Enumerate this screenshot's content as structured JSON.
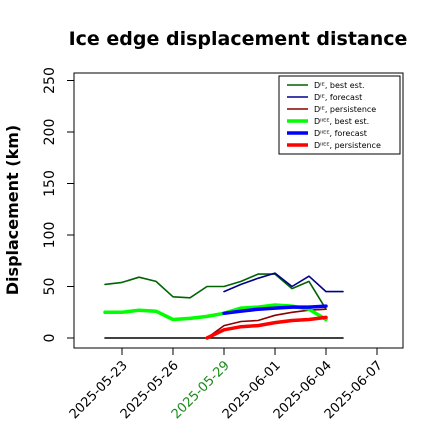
{
  "chart_data": {
    "type": "line",
    "title": "Ice edge displacement distance",
    "xlabel": "",
    "ylabel": "Displacement (km)",
    "x_range": [
      "2025-05-21",
      "2025-06-10"
    ],
    "ylim": [
      0,
      260
    ],
    "y_ticks": [
      "0",
      "50",
      "100",
      "150",
      "200",
      "250"
    ],
    "x_ticks": [
      {
        "label": "2025-05-23",
        "date": "2025-05-23",
        "color": "#000000"
      },
      {
        "label": "2025-05-26",
        "date": "2025-05-26",
        "color": "#000000"
      },
      {
        "label": "2025-05-29",
        "date": "2025-05-29",
        "color": "#1a8a1a"
      },
      {
        "label": "2025-06-01",
        "date": "2025-06-01",
        "color": "#000000"
      },
      {
        "label": "2025-06-04",
        "date": "2025-06-04",
        "color": "#000000"
      },
      {
        "label": "2025-06-07",
        "date": "2025-06-07",
        "color": "#000000"
      }
    ],
    "grid": false,
    "legend_position": "top-right",
    "legend": [
      {
        "label": "Dᴵᴱ, best est.",
        "color": "#006400",
        "width": "thin"
      },
      {
        "label": "Dᴵᴱ, forecast",
        "color": "#00008b",
        "width": "thin"
      },
      {
        "label": "Dᴵᴱ, persistence",
        "color": "#8b0000",
        "width": "thin"
      },
      {
        "label": "Dᴵᴵᴱᴱ, best est.",
        "color": "#00ff00",
        "width": "thick"
      },
      {
        "label": "Dᴵᴵᴱᴱ, forecast",
        "color": "#0000ff",
        "width": "thick"
      },
      {
        "label": "Dᴵᴵᴱᴱ, persistence",
        "color": "#ff0000",
        "width": "thick"
      }
    ],
    "series": [
      {
        "label": "baseline",
        "color": "#000000",
        "width": "thin",
        "x": [
          "2025-05-22",
          "2025-06-05"
        ],
        "y": [
          0,
          0
        ]
      },
      {
        "label": "Dᴵᴱ, best est.",
        "color": "#006400",
        "width": "thin",
        "x": [
          "2025-05-22",
          "2025-05-23",
          "2025-05-24",
          "2025-05-25",
          "2025-05-26",
          "2025-05-27",
          "2025-05-28",
          "2025-05-29",
          "2025-05-30",
          "2025-05-31",
          "2025-06-01",
          "2025-06-02",
          "2025-06-03",
          "2025-06-04"
        ],
        "y": [
          52,
          54,
          59,
          55,
          40,
          39,
          50,
          50,
          55,
          62,
          62,
          48,
          55,
          28
        ]
      },
      {
        "label": "Dᴵᴱ, forecast",
        "color": "#00008b",
        "width": "thin",
        "x": [
          "2025-05-29",
          "2025-05-30",
          "2025-05-31",
          "2025-06-01",
          "2025-06-02",
          "2025-06-03",
          "2025-06-04",
          "2025-06-05"
        ],
        "y": [
          45,
          52,
          58,
          63,
          50,
          60,
          45,
          45
        ]
      },
      {
        "label": "Dᴵᴱ, persistence",
        "color": "#8b0000",
        "width": "thin",
        "x": [
          "2025-05-28",
          "2025-05-29",
          "2025-05-30",
          "2025-05-31",
          "2025-06-01",
          "2025-06-02",
          "2025-06-03",
          "2025-06-04"
        ],
        "y": [
          0,
          12,
          16,
          17,
          22,
          25,
          27,
          28
        ]
      },
      {
        "label": "Dᴵᴵᴱᴱ, best est.",
        "color": "#00ff00",
        "width": "thick",
        "x": [
          "2025-05-22",
          "2025-05-23",
          "2025-05-24",
          "2025-05-25",
          "2025-05-26",
          "2025-05-27",
          "2025-05-28",
          "2025-05-29",
          "2025-05-30",
          "2025-05-31",
          "2025-06-01",
          "2025-06-02",
          "2025-06-03",
          "2025-06-04"
        ],
        "y": [
          25,
          25,
          27,
          26,
          18,
          19,
          21,
          24,
          29,
          30,
          32,
          31,
          28,
          18
        ]
      },
      {
        "label": "Dᴵᴵᴱᴱ, forecast",
        "color": "#0000ff",
        "width": "thick",
        "x": [
          "2025-05-29",
          "2025-05-30",
          "2025-05-31",
          "2025-06-01",
          "2025-06-02",
          "2025-06-03",
          "2025-06-04"
        ],
        "y": [
          24,
          26,
          28,
          29,
          30,
          30,
          31
        ]
      },
      {
        "label": "Dᴵᴵᴱᴱ, persistence",
        "color": "#ff0000",
        "width": "thick",
        "x": [
          "2025-05-28",
          "2025-05-29",
          "2025-05-30",
          "2025-05-31",
          "2025-06-01",
          "2025-06-02",
          "2025-06-03",
          "2025-06-04"
        ],
        "y": [
          0,
          8,
          11,
          12,
          15,
          17,
          18,
          20
        ]
      }
    ]
  }
}
